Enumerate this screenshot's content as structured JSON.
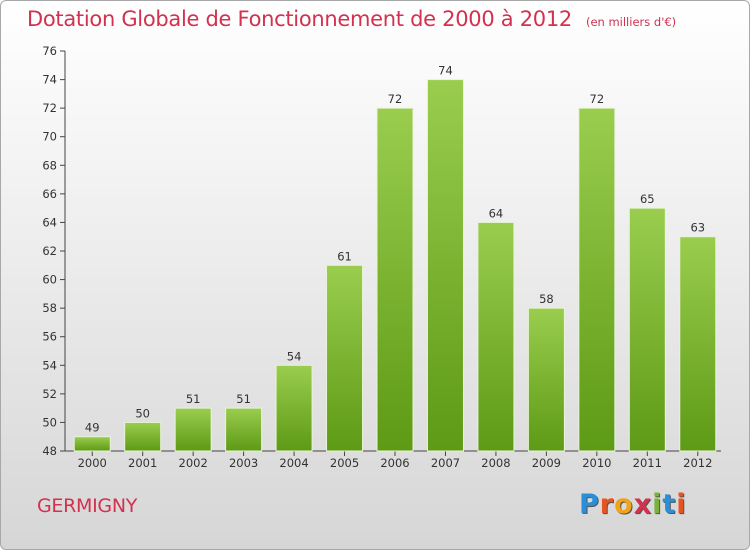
{
  "header": {
    "title": "Dotation Globale de Fonctionnement de 2000 à 2012",
    "unit": "(en milliers d'€)"
  },
  "footer": {
    "commune": "GERMIGNY",
    "logo": "Proxiti"
  },
  "colors": {
    "title": "#d2314f",
    "bar_top": "#9acd4e",
    "bar_bottom": "#5d9a15",
    "logo_letters": [
      "#2a8fd6",
      "#e8531e",
      "#f0a21a",
      "#d2314f",
      "#7ab23b",
      "#2a8fd6",
      "#e8531e"
    ]
  },
  "chart_data": {
    "type": "bar",
    "title": "Dotation Globale de Fonctionnement de 2000 à 2012",
    "subtitle": "(en milliers d'€)",
    "categories": [
      "2000",
      "2001",
      "2002",
      "2003",
      "2004",
      "2005",
      "2006",
      "2007",
      "2008",
      "2009",
      "2010",
      "2011",
      "2012"
    ],
    "values": [
      49,
      50,
      51,
      51,
      54,
      61,
      72,
      74,
      64,
      58,
      72,
      65,
      63
    ],
    "ylim": [
      48,
      76
    ],
    "yticks": [
      48,
      50,
      52,
      54,
      56,
      58,
      60,
      62,
      64,
      66,
      68,
      70,
      72,
      74,
      76
    ],
    "grid": false,
    "data_labels": true
  }
}
